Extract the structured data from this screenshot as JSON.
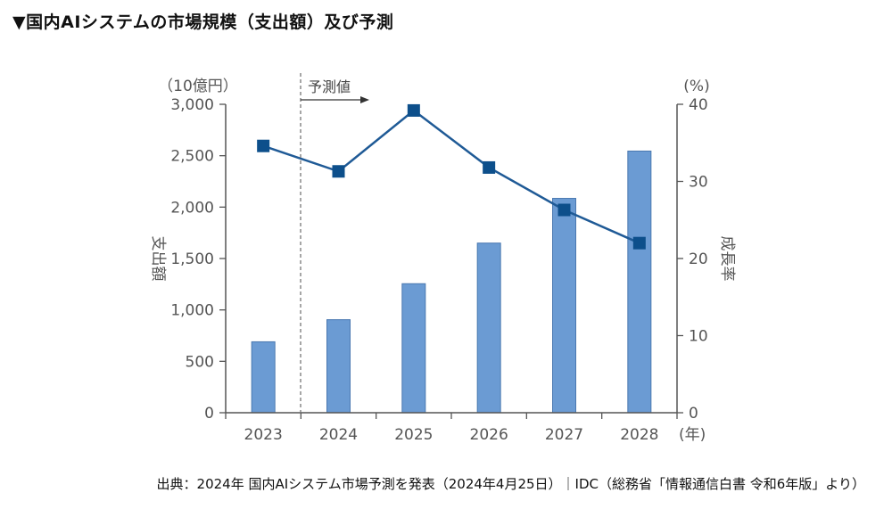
{
  "title": "▼国内AIシステムの市場規模（支出額）及び予測",
  "source": "出典：2024年 国内AIシステム市場予測を発表（2024年4月25日）｜IDC（総務省「情報通信白書 令和6年版」より）",
  "colors": {
    "bar": "#6b9bd3",
    "bar_stroke": "#4a78b0",
    "line": "#1f5a96",
    "marker": "#0d4f8b",
    "axis": "#555555",
    "grid": "#cccccc"
  },
  "chart_data": {
    "type": "bar",
    "categories": [
      "2023",
      "2024",
      "2025",
      "2026",
      "2027",
      "2028"
    ],
    "x_unit_label": "(年)",
    "y_left_unit": "（10億円）",
    "y_left_label": "支出額",
    "y_left_ticks": [
      "3,000",
      "2,500",
      "2,000",
      "1,500",
      "1,000",
      "500",
      "0"
    ],
    "y_left_lim": [
      0,
      3000
    ],
    "y_right_unit": "(%)",
    "y_right_label": "成長率",
    "y_right_ticks": [
      "40",
      "30",
      "20",
      "10",
      "0"
    ],
    "y_right_lim": [
      0,
      40
    ],
    "forecast_label": "予測値",
    "series": [
      {
        "type": "bar",
        "axis": "left",
        "values": [
          690,
          905,
          1255,
          1650,
          2085,
          2545
        ]
      },
      {
        "type": "line",
        "axis": "right",
        "values": [
          34.6,
          31.3,
          39.2,
          31.8,
          26.3,
          22.0
        ]
      }
    ],
    "grid": false
  }
}
